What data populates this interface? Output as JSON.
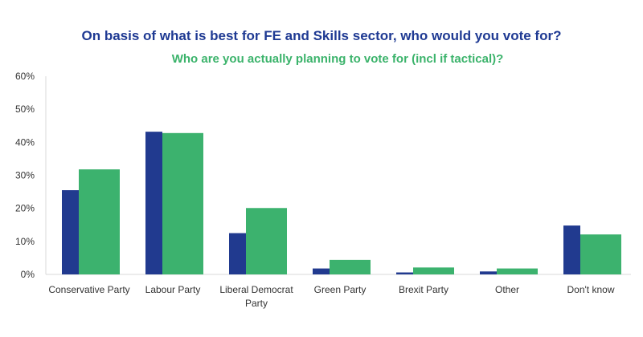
{
  "chart_data": {
    "type": "bar",
    "title": "On basis of what is best for FE and Skills sector, who would you vote for?",
    "subtitle": "Who are you actually planning to vote for (incl if tactical)?",
    "categories": [
      "Conservative Party",
      "Labour Party",
      "Liberal Democrat Party",
      "Green Party",
      "Brexit Party",
      "Other",
      "Don't know"
    ],
    "category_lines": [
      [
        "Conservative Party"
      ],
      [
        "Labour Party"
      ],
      [
        "Liberal Democrat",
        "Party"
      ],
      [
        "Green Party"
      ],
      [
        "Brexit Party"
      ],
      [
        "Other"
      ],
      [
        "Don't know"
      ]
    ],
    "series": [
      {
        "name": "On basis of what is best for FE and Skills sector, who would you vote for?",
        "color": "#213a8f",
        "values": [
          25.5,
          43.2,
          12.5,
          1.8,
          0.6,
          0.9,
          14.8
        ]
      },
      {
        "name": "Who are you actually planning to vote for (incl if tactical)?",
        "color": "#3cb26e",
        "values": [
          31.8,
          42.8,
          20.1,
          4.4,
          2.1,
          1.8,
          12.1
        ]
      }
    ],
    "ylim": [
      0,
      60
    ],
    "yticks": [
      "0%",
      "10%",
      "20%",
      "30%",
      "40%",
      "50%",
      "60%"
    ],
    "ytick_values": [
      0,
      10,
      20,
      30,
      40,
      50,
      60
    ],
    "grid": false,
    "legend": "none"
  }
}
